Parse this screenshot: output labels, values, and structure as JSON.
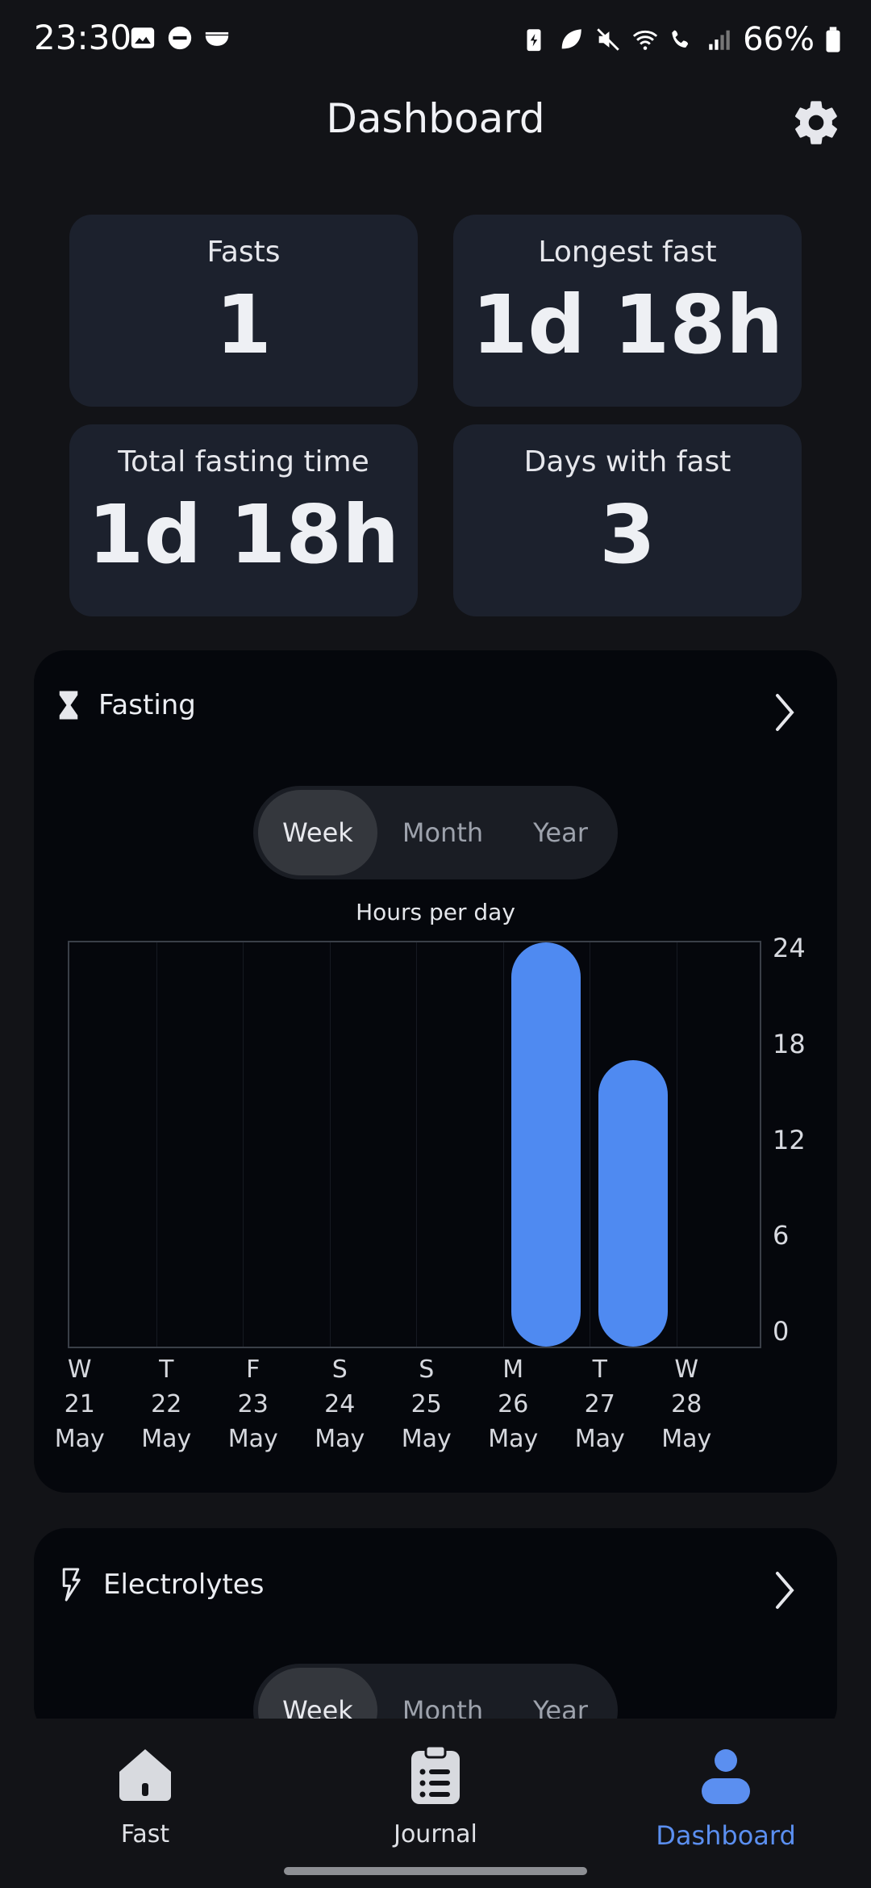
{
  "status_bar": {
    "time": "23:30",
    "battery": "66%"
  },
  "header": {
    "title": "Dashboard"
  },
  "stats": [
    {
      "label": "Fasts",
      "value": "1"
    },
    {
      "label": "Longest fast",
      "value": "1d 18h"
    },
    {
      "label": "Total fasting time",
      "value": "1d 18h"
    },
    {
      "label": "Days with fast",
      "value": "3"
    }
  ],
  "fasting": {
    "title": "Fasting",
    "tabs": [
      "Week",
      "Month",
      "Year"
    ],
    "active_tab": "Week",
    "chart_title": "Hours per day",
    "accent": "#4f8af1"
  },
  "electrolytes": {
    "title": "Electrolytes",
    "tabs": [
      "Week",
      "Month",
      "Year"
    ],
    "active_tab": "Week"
  },
  "chart_data": {
    "type": "bar",
    "title": "Hours per day",
    "categories": [
      [
        "W",
        "21",
        "May"
      ],
      [
        "T",
        "22",
        "May"
      ],
      [
        "F",
        "23",
        "May"
      ],
      [
        "S",
        "24",
        "May"
      ],
      [
        "S",
        "25",
        "May"
      ],
      [
        "M",
        "26",
        "May"
      ],
      [
        "T",
        "27",
        "May"
      ],
      [
        "W",
        "28",
        "May"
      ]
    ],
    "values": [
      0,
      0,
      0,
      0,
      0,
      24,
      17,
      0
    ],
    "ylim": [
      0,
      24
    ],
    "yticks": [
      "0",
      "6",
      "12",
      "18",
      "24"
    ],
    "grid": true
  },
  "bottom_nav": [
    {
      "label": "Fast",
      "icon": "home-icon"
    },
    {
      "label": "Journal",
      "icon": "clipboard-icon"
    },
    {
      "label": "Dashboard",
      "icon": "person-icon",
      "active": true,
      "color": "#5b8ff0"
    }
  ]
}
